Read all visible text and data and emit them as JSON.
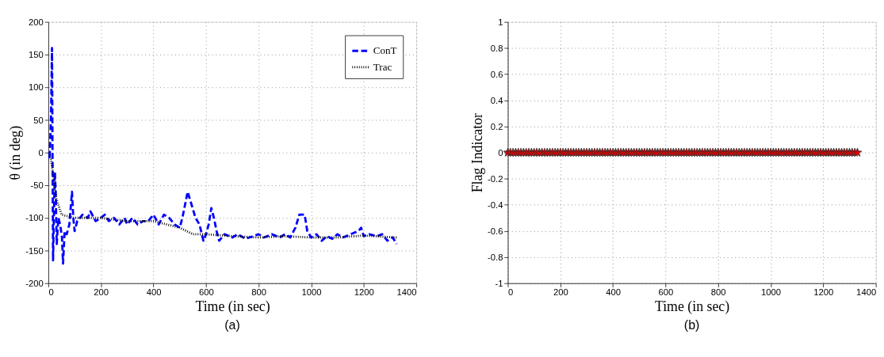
{
  "chart_data": [
    {
      "type": "line",
      "xlabel": "Time (in sec)",
      "ylabel": "θ (in deg)",
      "annotations": [
        "(a)"
      ],
      "xlim": [
        0,
        1400
      ],
      "xticks": [
        0,
        200,
        400,
        600,
        800,
        1000,
        1200,
        1400
      ],
      "ylim": [
        -200,
        200
      ],
      "yticks": [
        -200,
        -150,
        -100,
        -50,
        0,
        50,
        100,
        150,
        200
      ],
      "grid": true,
      "legend": "top right",
      "marker": "none",
      "series": [
        {
          "name": "ConT",
          "color": "#0000ff",
          "line_style": "dashed",
          "x": [
            0,
            5,
            10,
            14,
            16,
            18,
            22,
            25,
            28,
            32,
            38,
            45,
            52,
            56,
            62,
            70,
            80,
            90,
            95,
            100,
            110,
            130,
            150,
            160,
            180,
            200,
            215,
            230,
            250,
            270,
            290,
            300,
            320,
            340,
            360,
            380,
            400,
            420,
            440,
            460,
            480,
            500,
            510,
            520,
            530,
            545,
            560,
            575,
            590,
            600,
            610,
            620,
            630,
            640,
            650,
            670,
            700,
            720,
            750,
            780,
            800,
            820,
            850,
            880,
            900,
            920,
            940,
            955,
            975,
            985,
            1000,
            1020,
            1040,
            1060,
            1080,
            1100,
            1120,
            1150,
            1180,
            1190,
            1200,
            1220,
            1250,
            1270,
            1290,
            1310,
            1325
          ],
          "values": [
            0,
            -10,
            50,
            160,
            0,
            -165,
            -80,
            -30,
            -60,
            -140,
            -100,
            -110,
            -130,
            -170,
            -120,
            -125,
            -110,
            -60,
            -100,
            -120,
            -105,
            -95,
            -100,
            -90,
            -105,
            -100,
            -95,
            -105,
            -100,
            -110,
            -100,
            -110,
            -100,
            -110,
            -105,
            -105,
            -95,
            -110,
            -95,
            -100,
            -110,
            -115,
            -100,
            -80,
            -60,
            -80,
            -100,
            -110,
            -135,
            -125,
            -110,
            -85,
            -100,
            -120,
            -135,
            -125,
            -130,
            -125,
            -132,
            -128,
            -125,
            -130,
            -125,
            -130,
            -125,
            -130,
            -115,
            -95,
            -95,
            -120,
            -130,
            -125,
            -135,
            -128,
            -132,
            -125,
            -130,
            -125,
            -120,
            -115,
            -128,
            -125,
            -128,
            -125,
            -135,
            -130,
            -140
          ]
        },
        {
          "name": "Trac",
          "color": "#000000",
          "line_style": "dotted",
          "x": [
            0,
            10,
            20,
            30,
            50,
            100,
            200,
            300,
            400,
            500,
            550,
            600,
            700,
            800,
            900,
            1000,
            1100,
            1200,
            1325
          ],
          "values": [
            0,
            -10,
            -40,
            -70,
            -95,
            -100,
            -100,
            -105,
            -105,
            -115,
            -125,
            -125,
            -128,
            -130,
            -128,
            -130,
            -130,
            -127,
            -130
          ]
        }
      ]
    },
    {
      "type": "scatter",
      "xlabel": "Time (in sec)",
      "ylabel": "Flag Indicator",
      "annotations": [
        "(b)"
      ],
      "xlim": [
        0,
        1400
      ],
      "xticks": [
        0,
        200,
        400,
        600,
        800,
        1000,
        1200,
        1400
      ],
      "ylim": [
        -1,
        1
      ],
      "yticks": [
        -1,
        -0.8,
        -0.6,
        -0.4,
        -0.2,
        0,
        0.2,
        0.4,
        0.6,
        0.8,
        1
      ],
      "grid": true,
      "marker": "star",
      "series": [
        {
          "color": "#e00000",
          "x": [
            0,
            10,
            20,
            30,
            40,
            50,
            60,
            70,
            80,
            90,
            100,
            110,
            120,
            130,
            140,
            150,
            160,
            170,
            180,
            190,
            200,
            210,
            220,
            230,
            240,
            250,
            260,
            270,
            280,
            290,
            300,
            310,
            320,
            330,
            340,
            350,
            360,
            370,
            380,
            390,
            400,
            410,
            420,
            430,
            440,
            450,
            460,
            470,
            480,
            490,
            500,
            510,
            520,
            530,
            540,
            550,
            560,
            570,
            580,
            590,
            600,
            610,
            620,
            630,
            640,
            650,
            660,
            670,
            680,
            690,
            700,
            710,
            720,
            730,
            740,
            750,
            760,
            770,
            780,
            790,
            800,
            810,
            820,
            830,
            840,
            850,
            860,
            870,
            880,
            890,
            900,
            910,
            920,
            930,
            940,
            950,
            960,
            970,
            980,
            990,
            1000,
            1010,
            1020,
            1030,
            1040,
            1050,
            1060,
            1070,
            1080,
            1090,
            1100,
            1110,
            1120,
            1130,
            1140,
            1150,
            1160,
            1170,
            1180,
            1190,
            1200,
            1210,
            1220,
            1230,
            1240,
            1250,
            1260,
            1270,
            1280,
            1290,
            1300,
            1310,
            1320,
            1330
          ],
          "values": [
            0,
            0,
            0,
            0,
            0,
            0,
            0,
            0,
            0,
            0,
            0,
            0,
            0,
            0,
            0,
            0,
            0,
            0,
            0,
            0,
            0,
            0,
            0,
            0,
            0,
            0,
            0,
            0,
            0,
            0,
            0,
            0,
            0,
            0,
            0,
            0,
            0,
            0,
            0,
            0,
            0,
            0,
            0,
            0,
            0,
            0,
            0,
            0,
            0,
            0,
            0,
            0,
            0,
            0,
            0,
            0,
            0,
            0,
            0,
            0,
            0,
            0,
            0,
            0,
            0,
            0,
            0,
            0,
            0,
            0,
            0,
            0,
            0,
            0,
            0,
            0,
            0,
            0,
            0,
            0,
            0,
            0,
            0,
            0,
            0,
            0,
            0,
            0,
            0,
            0,
            0,
            0,
            0,
            0,
            0,
            0,
            0,
            0,
            0,
            0,
            0,
            0,
            0,
            0,
            0,
            0,
            0,
            0,
            0,
            0,
            0,
            0,
            0,
            0,
            0,
            0,
            0,
            0,
            0,
            0,
            0,
            0,
            0,
            0,
            0,
            0,
            0,
            0,
            0,
            0,
            0,
            0,
            0,
            0
          ]
        }
      ]
    }
  ]
}
